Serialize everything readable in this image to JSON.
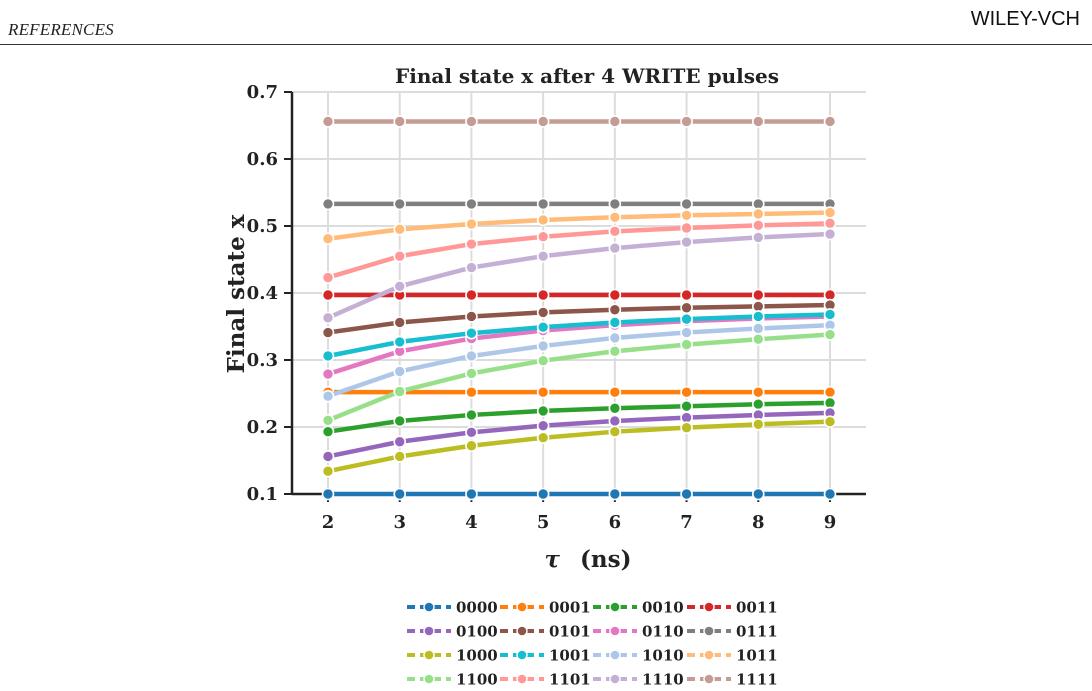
{
  "header": {
    "left": "REFERENCES",
    "right": "WILEY-VCH"
  },
  "chart_data": {
    "type": "line",
    "title": "Final state x after 4 WRITE pulses",
    "xlabel": "(ns)",
    "xlabel_symbol": "τ",
    "ylabel": "Final state x",
    "x": [
      2,
      3,
      4,
      5,
      6,
      7,
      8,
      9
    ],
    "xlim": [
      2,
      9
    ],
    "ylim": [
      0.1,
      0.7
    ],
    "yticks": [
      "0.1",
      "0.2",
      "0.3",
      "0.4",
      "0.5",
      "0.6",
      "0.7"
    ],
    "xticks": [
      "2",
      "3",
      "4",
      "5",
      "6",
      "7",
      "8",
      "9"
    ],
    "grid": true,
    "legend_position": "bottom",
    "series": [
      {
        "name": "0000",
        "color": "#1f77b4",
        "values": [
          0.1,
          0.1,
          0.1,
          0.1,
          0.1,
          0.1,
          0.1,
          0.1
        ]
      },
      {
        "name": "0001",
        "color": "#ff7f0e",
        "values": [
          0.252,
          0.252,
          0.252,
          0.252,
          0.252,
          0.252,
          0.252,
          0.252
        ]
      },
      {
        "name": "0010",
        "color": "#2ca02c",
        "values": [
          0.193,
          0.209,
          0.218,
          0.224,
          0.228,
          0.231,
          0.234,
          0.236
        ]
      },
      {
        "name": "0011",
        "color": "#d62728",
        "values": [
          0.397,
          0.397,
          0.397,
          0.397,
          0.397,
          0.397,
          0.397,
          0.397
        ]
      },
      {
        "name": "0100",
        "color": "#9467bd",
        "values": [
          0.156,
          0.178,
          0.192,
          0.202,
          0.209,
          0.214,
          0.218,
          0.221
        ]
      },
      {
        "name": "0101",
        "color": "#8c564b",
        "values": [
          0.341,
          0.356,
          0.365,
          0.371,
          0.375,
          0.378,
          0.38,
          0.382
        ]
      },
      {
        "name": "0110",
        "color": "#e377c2",
        "values": [
          0.279,
          0.313,
          0.332,
          0.344,
          0.352,
          0.358,
          0.362,
          0.365
        ]
      },
      {
        "name": "0111",
        "color": "#7f7f7f",
        "values": [
          0.533,
          0.533,
          0.533,
          0.533,
          0.533,
          0.533,
          0.533,
          0.533
        ]
      },
      {
        "name": "1000",
        "color": "#bcbd22",
        "values": [
          0.134,
          0.156,
          0.172,
          0.184,
          0.193,
          0.199,
          0.204,
          0.208
        ]
      },
      {
        "name": "1001",
        "color": "#17becf",
        "values": [
          0.306,
          0.327,
          0.34,
          0.349,
          0.356,
          0.361,
          0.365,
          0.368
        ]
      },
      {
        "name": "1010",
        "color": "#aec7e8",
        "values": [
          0.246,
          0.283,
          0.306,
          0.321,
          0.333,
          0.341,
          0.347,
          0.352
        ]
      },
      {
        "name": "1011",
        "color": "#ffbb78",
        "values": [
          0.481,
          0.495,
          0.503,
          0.509,
          0.513,
          0.516,
          0.518,
          0.52
        ]
      },
      {
        "name": "1100",
        "color": "#98df8a",
        "values": [
          0.21,
          0.253,
          0.28,
          0.299,
          0.313,
          0.323,
          0.331,
          0.338
        ]
      },
      {
        "name": "1101",
        "color": "#ff9896",
        "values": [
          0.423,
          0.455,
          0.473,
          0.484,
          0.492,
          0.497,
          0.501,
          0.504
        ]
      },
      {
        "name": "1110",
        "color": "#c5b0d5",
        "values": [
          0.363,
          0.41,
          0.438,
          0.455,
          0.467,
          0.476,
          0.483,
          0.488
        ]
      },
      {
        "name": "1111",
        "color": "#c49c94",
        "values": [
          0.656,
          0.656,
          0.656,
          0.656,
          0.656,
          0.656,
          0.656,
          0.656
        ]
      }
    ]
  }
}
